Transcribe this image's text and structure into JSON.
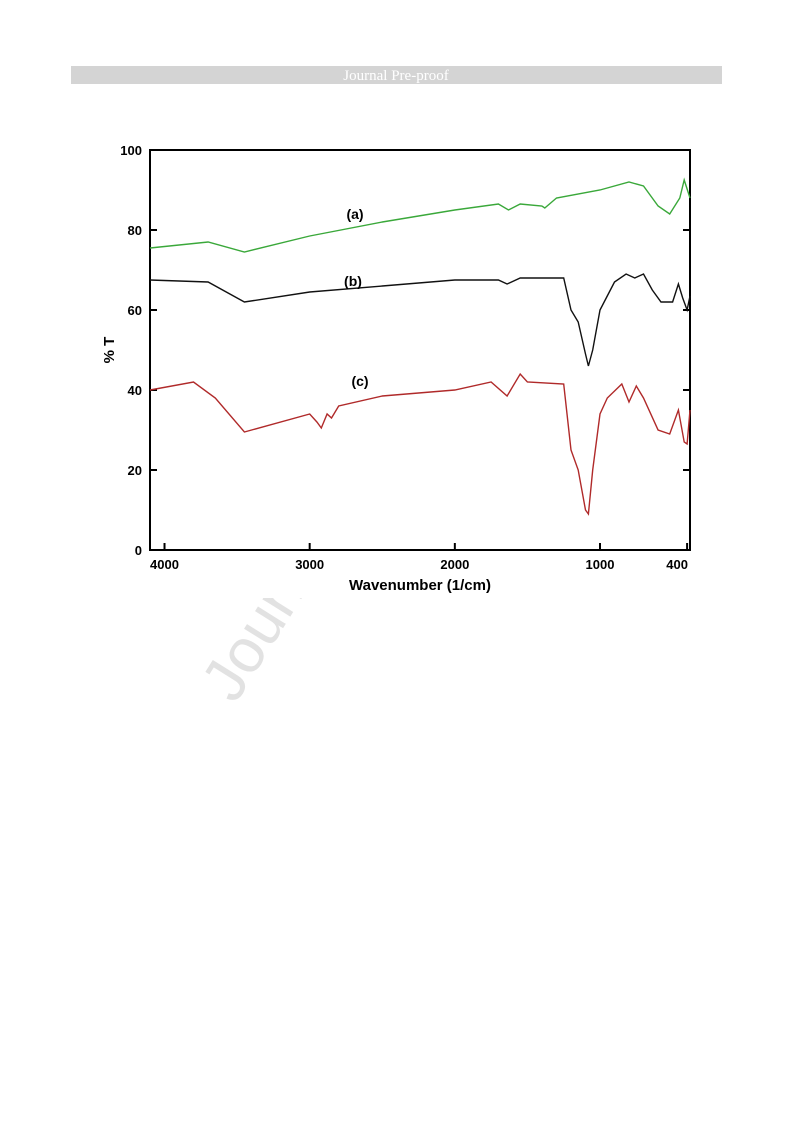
{
  "header": {
    "title": "Journal Pre-proof"
  },
  "watermark": "Journal Pre-proof",
  "chart_data": {
    "type": "line",
    "xlabel": "Wavenumber (1/cm)",
    "ylabel": "% T",
    "xlim": [
      4100,
      380
    ],
    "xticks": [
      4000,
      3000,
      2000,
      1000,
      400
    ],
    "ylim": [
      0,
      100
    ],
    "yticks": [
      0,
      20,
      40,
      60,
      80,
      100
    ],
    "annotations": [
      "(a)",
      "(b)",
      "(c)"
    ],
    "series": [
      {
        "color": "#3aa83a",
        "x": [
          4100,
          3700,
          3450,
          3000,
          2500,
          2000,
          1700,
          1630,
          1550,
          1400,
          1380,
          1300,
          1000,
          800,
          700,
          600,
          520,
          450,
          420,
          380
        ],
        "values": [
          75.5,
          77,
          74.5,
          78.5,
          82,
          85,
          86.5,
          85,
          86.5,
          86,
          85.5,
          88,
          90,
          92,
          91,
          86,
          84,
          88,
          92.5,
          88
        ]
      },
      {
        "color": "#111111",
        "x": [
          4100,
          3700,
          3450,
          3000,
          2500,
          2000,
          1700,
          1640,
          1550,
          1250,
          1200,
          1150,
          1100,
          1080,
          1050,
          1000,
          900,
          820,
          760,
          700,
          640,
          580,
          500,
          460,
          430,
          400,
          380
        ],
        "values": [
          67.5,
          67,
          62,
          64.5,
          66,
          67.5,
          67.5,
          66.5,
          68,
          68,
          60,
          57,
          49,
          46,
          50,
          60,
          67,
          69,
          68,
          69,
          65,
          62,
          62,
          66.5,
          63,
          60,
          63.5
        ]
      },
      {
        "color": "#b02a2a",
        "x": [
          4100,
          3800,
          3650,
          3450,
          3000,
          2950,
          2920,
          2880,
          2850,
          2800,
          2500,
          2000,
          1750,
          1640,
          1550,
          1500,
          1250,
          1200,
          1150,
          1100,
          1080,
          1050,
          1000,
          950,
          850,
          800,
          750,
          700,
          600,
          520,
          460,
          420,
          400,
          380
        ],
        "values": [
          40,
          42,
          38,
          29.5,
          34,
          32,
          30.5,
          34,
          33,
          36,
          38.5,
          40,
          42,
          38.5,
          44,
          42,
          41.5,
          25,
          20,
          10,
          9,
          20,
          34,
          38,
          41.5,
          37,
          41,
          38,
          30,
          29,
          35,
          27,
          26.5,
          35
        ]
      }
    ]
  }
}
